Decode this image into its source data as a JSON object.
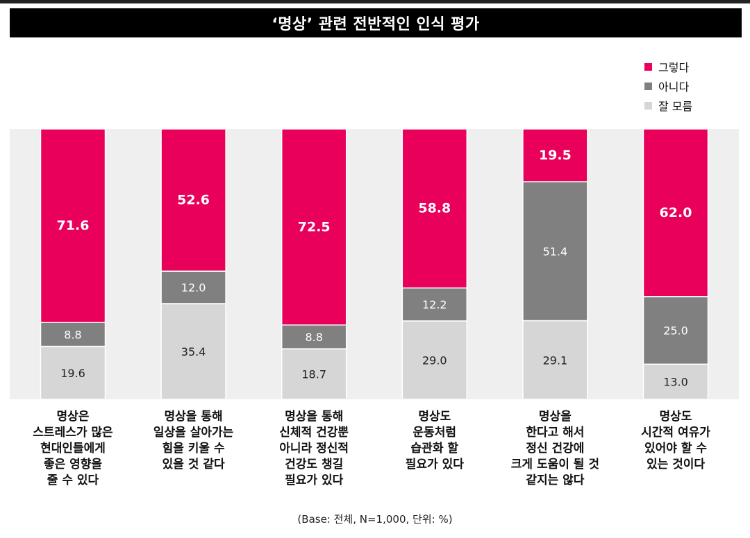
{
  "title": "‘명상’ 관련 전반적인 인식 평가",
  "note": "(Base: 전체, N=1,000, 단위: %)",
  "colors": {
    "yes": "#E8005A",
    "no": "#808080",
    "unknown": "#D6D6D6",
    "panel": "#EFEFEF"
  },
  "chart_data": {
    "type": "bar",
    "stacked": true,
    "title": "‘명상’ 관련 전반적인 인식 평가",
    "categories": [
      "명상은\n스트레스가 많은\n현대인들에게\n좋은 영향을\n줄 수 있다",
      "명상을 통해\n일상을 살아가는\n힘을 키울 수\n있을 것 같다",
      "명상을 통해\n신체적 건강뿐\n아니라 정신적\n건강도 챙길\n필요가 있다",
      "명상도\n운동처럼\n습관화 할\n필요가 있다",
      "명상을\n한다고 해서\n정신 건강에\n크게 도움이 될 것\n같지는 않다",
      "명상도\n시간적 여유가\n있어야 할 수\n있는 것이다"
    ],
    "series": [
      {
        "key": "unknown",
        "name": "잘 모름",
        "values": [
          19.6,
          35.4,
          18.7,
          29.0,
          29.1,
          13.0
        ],
        "labels": [
          "19.6",
          "35.4",
          "18.7",
          "29.0",
          "29.1",
          "13.0"
        ]
      },
      {
        "key": "no",
        "name": "아니다",
        "values": [
          8.8,
          12.0,
          8.8,
          12.2,
          51.4,
          25.0
        ],
        "labels": [
          "8.8",
          "12.0",
          "8.8",
          "12.2",
          "51.4",
          "25.0"
        ]
      },
      {
        "key": "yes",
        "name": "그렇다",
        "values": [
          71.6,
          52.6,
          72.5,
          58.8,
          19.5,
          62.0
        ],
        "labels": [
          "71.6",
          "52.6",
          "72.5",
          "58.8",
          "19.5",
          "62.0"
        ]
      }
    ],
    "legend": {
      "position": "top-right",
      "order": [
        "그렇다",
        "아니다",
        "잘 모름"
      ]
    },
    "ylim": [
      0,
      100
    ]
  }
}
